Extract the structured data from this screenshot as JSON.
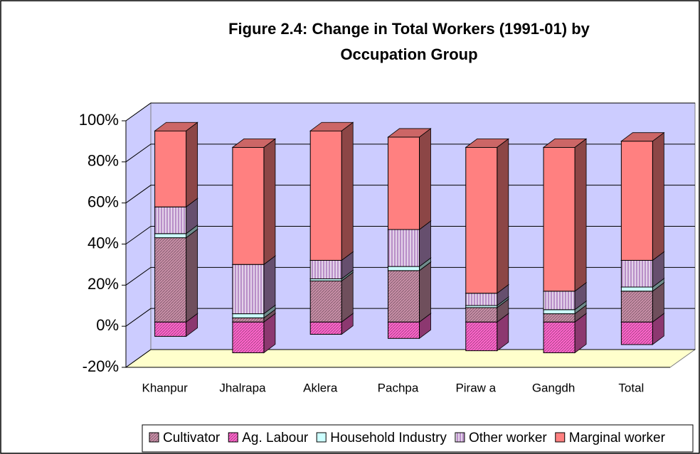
{
  "chart_data": {
    "type": "bar3d_stacked",
    "title": "Figure 2.4: Change in Total Workers (1991-01) by",
    "subtitle": "Occupation Group",
    "categories": [
      "Khanpur",
      "Jhalrapa",
      "Aklera",
      "Pachpa",
      "Piraw a",
      "Gangdh",
      "Total"
    ],
    "series": [
      {
        "name": "Cultivator",
        "color": "#c98fa8",
        "pattern": "diagonal",
        "values": [
          41,
          2,
          20,
          25,
          7,
          4,
          15
        ]
      },
      {
        "name": "Ag. Labour",
        "color": "#ff66cc",
        "pattern": "diagonal",
        "values": [
          -7,
          -15,
          -6,
          -8,
          -14,
          -15,
          -11
        ]
      },
      {
        "name": "Household Industry",
        "color": "#ccffff",
        "pattern": "none",
        "values": [
          2,
          2,
          1,
          2,
          1,
          2,
          2
        ]
      },
      {
        "name": "Other worker",
        "color": "#b98fc8",
        "pattern": "vertical",
        "values": [
          13,
          24,
          9,
          18,
          6,
          9,
          13
        ]
      },
      {
        "name": "Marginal worker",
        "color": "#ff8080",
        "pattern": "none",
        "values": [
          37,
          57,
          63,
          45,
          71,
          70,
          58
        ]
      }
    ],
    "ylim": [
      -20,
      100
    ],
    "yticks": [
      {
        "value": -20,
        "label": "-20%"
      },
      {
        "value": 0,
        "label": "0%"
      },
      {
        "value": 20,
        "label": "20%"
      },
      {
        "value": 40,
        "label": "40%"
      },
      {
        "value": 60,
        "label": "60%"
      },
      {
        "value": 80,
        "label": "80%"
      },
      {
        "value": 100,
        "label": "100%"
      }
    ],
    "grid": true,
    "legend": "bottom"
  }
}
